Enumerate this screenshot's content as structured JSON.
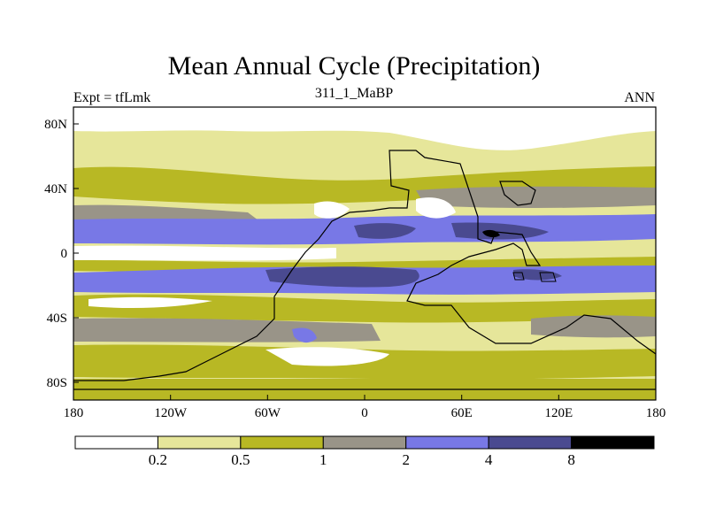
{
  "title": "Mean Annual Cycle (Precipitation)",
  "subtitle_left": "Expt = tfLmk",
  "subtitle_center": "311_1_MaBP",
  "subtitle_right": "ANN",
  "axes": {
    "x_ticks": [
      "180",
      "120W",
      "60W",
      "0",
      "60E",
      "120E",
      "180"
    ],
    "y_ticks": [
      "80N",
      "40N",
      "0",
      "40S",
      "80S"
    ]
  },
  "colorbar": {
    "boundaries": [
      "0.2",
      "0.5",
      "1",
      "2",
      "4",
      "8"
    ],
    "colors": [
      "#ffffff",
      "#e6e69a",
      "#b8b824",
      "#999488",
      "#7878e6",
      "#4a4a90",
      "#000000"
    ]
  }
}
